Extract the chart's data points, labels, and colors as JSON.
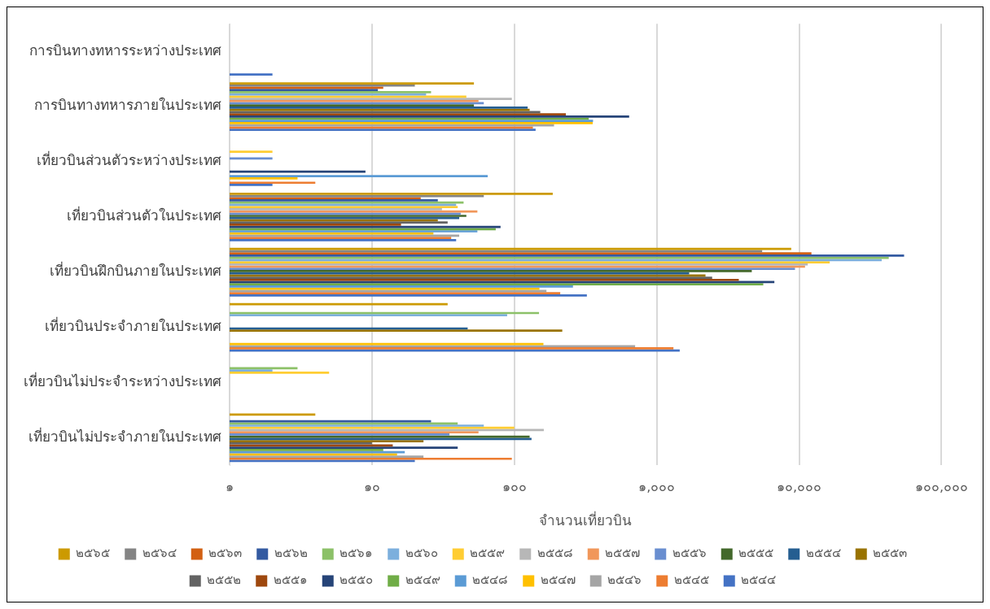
{
  "chart_data": {
    "type": "bar",
    "orientation": "horizontal",
    "log": "x",
    "grid": "x",
    "legend": "bottom",
    "xlabel": "จำนวนเที่ยวบิน",
    "categories": [
      "การบินทางทหารระหว่างประเทศ",
      "การบินทางทหารภายในประเทศ",
      "เที่ยวบินส่วนตัวระหว่างประเทศ",
      "เที่ยวบินส่วนตัวในประเทศ",
      "เที่ยวบินฝึกบินภายในประเทศ",
      "เที่ยวบินประจำภายในประเทศ",
      "เที่ยวบินไม่ประจำระหว่างประเทศ",
      "เที่ยวบินไม่ประจำภายในประเทศ"
    ],
    "xlim": [
      1,
      100000
    ],
    "xticks": [
      {
        "value": 1,
        "label": "๑"
      },
      {
        "value": 10,
        "label": "๑๐"
      },
      {
        "value": 100,
        "label": "๑๐๐"
      },
      {
        "value": 1000,
        "label": "๑,๐๐๐"
      },
      {
        "value": 10000,
        "label": "๑๐,๐๐๐"
      },
      {
        "value": 100000,
        "label": "๑๐๐,๐๐๐"
      }
    ],
    "series": [
      {
        "name": "๒๕๖๕",
        "color": "#cc9a00",
        "values": [
          null,
          52,
          null,
          186,
          8800,
          34,
          null,
          4
        ]
      },
      {
        "name": "๒๕๖๔",
        "color": "#848484",
        "values": [
          null,
          20,
          null,
          61,
          5500,
          null,
          null,
          null
        ]
      },
      {
        "name": "๒๕๖๓",
        "color": "#d26012",
        "values": [
          null,
          12,
          null,
          22,
          12200,
          null,
          null,
          null
        ]
      },
      {
        "name": "๒๕๖๒",
        "color": "#335aa1",
        "values": [
          null,
          11,
          null,
          29,
          54600,
          null,
          null,
          26
        ]
      },
      {
        "name": "๒๕๖๑",
        "color": "#8cc168",
        "values": [
          null,
          26,
          null,
          44,
          42600,
          149,
          3,
          40
        ]
      },
      {
        "name": "๒๕๖๐",
        "color": "#7cafdd",
        "values": [
          null,
          24,
          null,
          39,
          38000,
          89,
          2,
          61
        ]
      },
      {
        "name": "๒๕๕๙",
        "color": "#ffcd33",
        "values": [
          null,
          46,
          2,
          40,
          16400,
          null,
          5,
          100
        ]
      },
      {
        "name": "๒๕๕๘",
        "color": "#b7b7b7",
        "values": [
          null,
          96,
          null,
          31,
          11500,
          null,
          null,
          161
        ]
      },
      {
        "name": "๒๕๕๗",
        "color": "#f1975a",
        "values": [
          null,
          56,
          null,
          55,
          11000,
          null,
          null,
          56
        ]
      },
      {
        "name": "๒๕๕๖",
        "color": "#698ed0",
        "values": [
          null,
          61,
          2,
          42,
          9350,
          null,
          null,
          35
        ]
      },
      {
        "name": "๒๕๕๕",
        "color": "#43682b",
        "values": [
          null,
          52,
          null,
          46,
          4650,
          null,
          null,
          128
        ]
      },
      {
        "name": "๒๕๕๔",
        "color": "#255e91",
        "values": [
          null,
          124,
          null,
          41,
          1690,
          47,
          null,
          132
        ]
      },
      {
        "name": "๒๕๕๓",
        "color": "#997300",
        "values": [
          null,
          128,
          null,
          29,
          2200,
          217,
          null,
          23
        ]
      },
      {
        "name": "๒๕๕๒",
        "color": "#636363",
        "values": [
          null,
          152,
          null,
          34,
          2450,
          null,
          null,
          10
        ]
      },
      {
        "name": "๒๕๕๑",
        "color": "#9e480e",
        "values": [
          null,
          230,
          null,
          16,
          3770,
          null,
          null,
          14
        ]
      },
      {
        "name": "๒๕๕๐",
        "color": "#264478",
        "values": [
          null,
          640,
          9,
          80,
          6700,
          null,
          null,
          40
        ]
      },
      {
        "name": "๒๕๔๙",
        "color": "#70ad47",
        "values": [
          null,
          333,
          null,
          74,
          5600,
          null,
          null,
          12
        ]
      },
      {
        "name": "๒๕๔๘",
        "color": "#5b9bd5",
        "values": [
          null,
          357,
          65,
          55,
          258,
          null,
          null,
          17
        ]
      },
      {
        "name": "๒๕๔๗",
        "color": "#ffc000",
        "values": [
          null,
          355,
          3,
          27,
          150,
          160,
          null,
          15
        ]
      },
      {
        "name": "๒๕๔๖",
        "color": "#a5a5a5",
        "values": [
          null,
          190,
          null,
          41,
          168,
          705,
          null,
          23
        ]
      },
      {
        "name": "๒๕๔๕",
        "color": "#ed7d31",
        "values": [
          null,
          135,
          4,
          36,
          210,
          1310,
          null,
          96
        ]
      },
      {
        "name": "๒๕๔๔",
        "color": "#4472c4",
        "values": [
          2,
          141,
          2,
          39,
          323,
          1450,
          null,
          20
        ]
      }
    ]
  }
}
